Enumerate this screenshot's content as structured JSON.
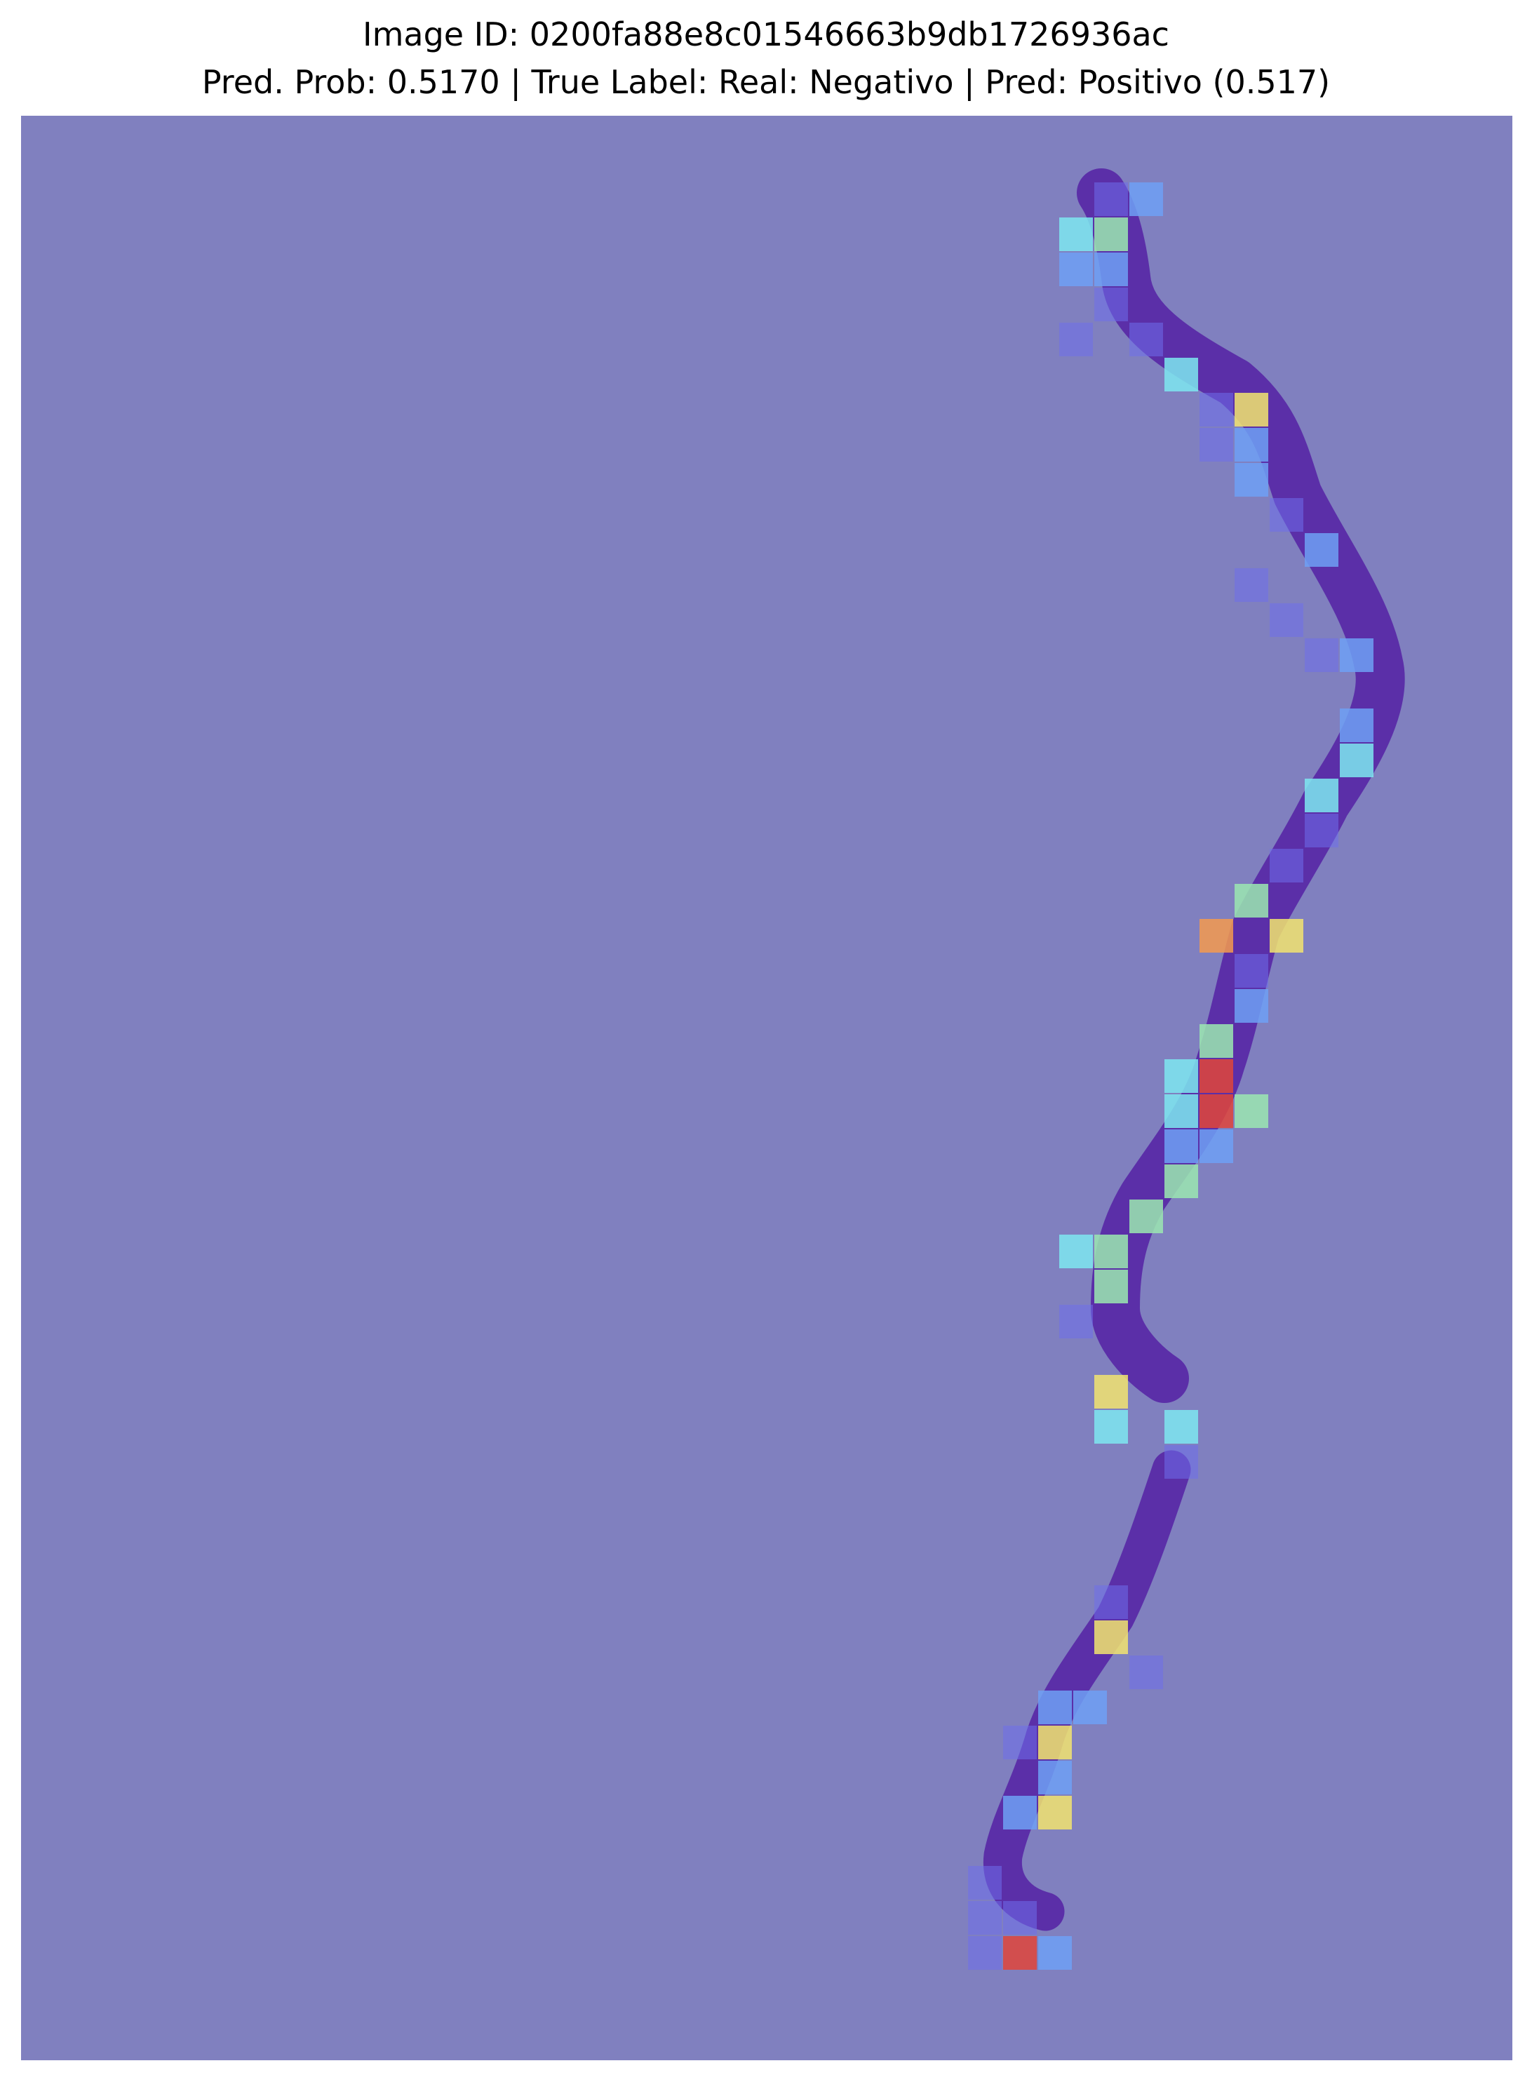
{
  "figure": {
    "title_line1": "Image ID: 0200fa88e8c01546663b9db1726936ac",
    "title_line2": "Pred. Prob: 0.5170 | True Label: Real: Negativo | Pred: Positivo (0.517)"
  },
  "colors": {
    "background": "#8080BF",
    "tissue": "#5B2FA8",
    "tile_low": "#6E6EEB",
    "tile_blue": "#6FA0F5",
    "tile_cyan": "#7EE8F0",
    "tile_green": "#9BE8B0",
    "tile_yellow": "#F2E46E",
    "tile_orange": "#F49A4E",
    "tile_red": "#E0453A"
  }
}
